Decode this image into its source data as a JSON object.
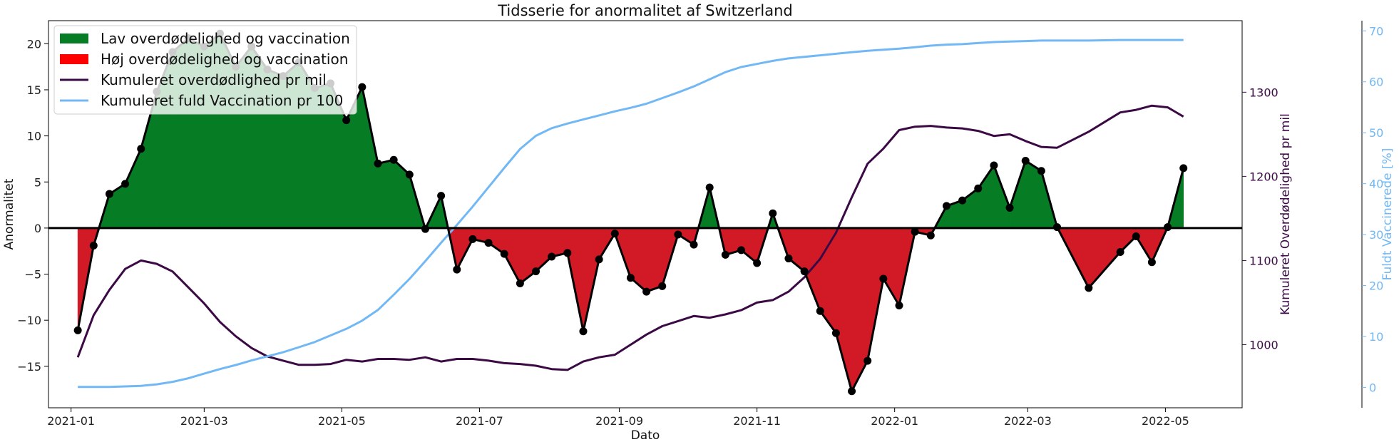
{
  "chart_data": {
    "type": "area",
    "title": "Tidsserie for anormalitet af Switzerland",
    "xlabel": "Dato",
    "ylabel": "Anormalitet",
    "ylabel_right": "Kumuleret Overdødelighed pr mil",
    "ylabel_right2": "Fuldt Vaccinerede [%]",
    "ylim": [
      -19.5,
      22.5
    ],
    "ylim_right": [
      925,
      1385
    ],
    "ylim_right2": [
      -4,
      72
    ],
    "xlim": [
      "2020-12-22",
      "2022-06-04"
    ],
    "x_ticks": [
      "2021-01",
      "2021-03",
      "2021-05",
      "2021-07",
      "2021-09",
      "2021-11",
      "2022-01",
      "2022-03",
      "2022-05"
    ],
    "y_ticks": [
      -15,
      -10,
      -5,
      0,
      5,
      10,
      15,
      20
    ],
    "y_ticks_right": [
      1000,
      1100,
      1200,
      1300
    ],
    "y_ticks_right2": [
      0,
      10,
      20,
      30,
      40,
      50,
      60,
      70
    ],
    "legend_position": "top-left",
    "colors": {
      "positive_fill": "#067d24",
      "negative_fill": "#d21a27",
      "anomaly_line": "#000000",
      "excess_line": "#3b0a45",
      "vacc_line": "#72b8f5",
      "right_axis": "#3b0a45",
      "right2_axis": "#72b8f5"
    },
    "legend": [
      {
        "label": "Lav overdødelighed og vaccination",
        "kind": "patch",
        "color": "#067d24"
      },
      {
        "label": "Høj overdødelighed og vaccination",
        "kind": "patch",
        "color": "#ff0000"
      },
      {
        "label": "Kumuleret overdødlighed pr mil",
        "kind": "line",
        "color": "#3b0a45"
      },
      {
        "label": "Kumuleret fuld Vaccination pr 100",
        "kind": "line",
        "color": "#72b8f5"
      }
    ],
    "series": [
      {
        "axis": "left",
        "x": [
          "2021-01-04",
          "2021-01-11",
          "2021-01-18",
          "2021-01-25",
          "2021-02-01",
          "2021-02-08",
          "2021-02-15",
          "2021-02-22",
          "2021-03-01",
          "2021-03-08",
          "2021-03-15",
          "2021-03-22",
          "2021-03-29",
          "2021-04-05",
          "2021-04-12",
          "2021-04-19",
          "2021-04-26",
          "2021-05-03",
          "2021-05-10",
          "2021-05-17",
          "2021-05-24",
          "2021-05-31",
          "2021-06-07",
          "2021-06-14",
          "2021-06-21",
          "2021-06-28",
          "2021-07-05",
          "2021-07-12",
          "2021-07-19",
          "2021-07-26",
          "2021-08-02",
          "2021-08-09",
          "2021-08-16",
          "2021-08-23",
          "2021-08-30",
          "2021-09-06",
          "2021-09-13",
          "2021-09-20",
          "2021-09-27",
          "2021-10-04",
          "2021-10-11",
          "2021-10-18",
          "2021-10-25",
          "2021-11-01",
          "2021-11-08",
          "2021-11-15",
          "2021-11-22",
          "2021-11-29",
          "2021-12-06",
          "2021-12-13",
          "2021-12-20",
          "2021-12-27",
          "2022-01-03",
          "2022-01-10",
          "2022-01-17",
          "2022-01-24",
          "2022-01-31",
          "2022-02-07",
          "2022-02-14",
          "2022-02-21",
          "2022-02-28",
          "2022-03-07",
          "2022-03-14",
          "2022-03-28",
          "2022-04-11",
          "2022-04-18",
          "2022-04-25",
          "2022-05-02",
          "2022-05-09"
        ],
        "values": [
          -11.1,
          -1.9,
          3.7,
          4.8,
          8.6,
          14.8,
          19.1,
          20.6,
          19.7,
          21.1,
          17.5,
          19.7,
          17.2,
          16.5,
          18.0,
          15.2,
          15.7,
          11.7,
          15.3,
          7.0,
          7.4,
          5.8,
          -0.1,
          3.5,
          -4.5,
          -1.2,
          -1.6,
          -2.8,
          -6.0,
          -4.7,
          -3.1,
          -2.7,
          -11.2,
          -3.4,
          -0.6,
          -5.4,
          -6.9,
          -6.3,
          -0.7,
          -1.8,
          4.4,
          -2.9,
          -2.4,
          -3.8,
          1.6,
          -3.3,
          -4.7,
          -9.0,
          -11.4,
          -17.7,
          -14.4,
          -5.5,
          -8.4,
          -0.4,
          -0.8,
          2.4,
          3.0,
          4.3,
          6.8,
          2.2,
          7.3,
          6.2,
          0.1,
          -6.5,
          -2.6,
          -0.9,
          -3.7,
          0.1,
          6.5
        ]
      },
      {
        "name": "Kumuleret overdødlighed pr mil",
        "axis": "right",
        "x": [
          "2021-01-04",
          "2021-01-11",
          "2021-01-18",
          "2021-01-25",
          "2021-02-01",
          "2021-02-08",
          "2021-02-15",
          "2021-02-22",
          "2021-03-01",
          "2021-03-08",
          "2021-03-15",
          "2021-03-22",
          "2021-03-29",
          "2021-04-05",
          "2021-04-12",
          "2021-04-19",
          "2021-04-26",
          "2021-05-03",
          "2021-05-10",
          "2021-05-17",
          "2021-05-24",
          "2021-05-31",
          "2021-06-07",
          "2021-06-14",
          "2021-06-21",
          "2021-06-28",
          "2021-07-05",
          "2021-07-12",
          "2021-07-19",
          "2021-07-26",
          "2021-08-02",
          "2021-08-09",
          "2021-08-16",
          "2021-08-23",
          "2021-08-30",
          "2021-09-06",
          "2021-09-13",
          "2021-09-20",
          "2021-09-27",
          "2021-10-04",
          "2021-10-11",
          "2021-10-18",
          "2021-10-25",
          "2021-11-01",
          "2021-11-08",
          "2021-11-15",
          "2021-11-22",
          "2021-11-29",
          "2021-12-06",
          "2021-12-13",
          "2021-12-20",
          "2021-12-27",
          "2022-01-03",
          "2022-01-10",
          "2022-01-17",
          "2022-01-24",
          "2022-01-31",
          "2022-02-07",
          "2022-02-14",
          "2022-02-21",
          "2022-02-28",
          "2022-03-07",
          "2022-03-14",
          "2022-03-28",
          "2022-04-11",
          "2022-04-18",
          "2022-04-25",
          "2022-05-02",
          "2022-05-09"
        ],
        "values": [
          985,
          1035,
          1065,
          1090,
          1100,
          1096,
          1087,
          1068,
          1049,
          1027,
          1010,
          996,
          986,
          981,
          976,
          976,
          977,
          982,
          980,
          983,
          983,
          982,
          985,
          980,
          983,
          983,
          981,
          978,
          977,
          975,
          971,
          970,
          980,
          985,
          988,
          1000,
          1012,
          1022,
          1028,
          1034,
          1032,
          1036,
          1041,
          1050,
          1053,
          1063,
          1080,
          1102,
          1133,
          1175,
          1215,
          1233,
          1255,
          1259,
          1260,
          1258,
          1257,
          1254,
          1248,
          1250,
          1242,
          1235,
          1234,
          1253,
          1276,
          1279,
          1284,
          1282,
          1271
        ]
      },
      {
        "name": "Kumuleret fuld Vaccination pr 100",
        "axis": "right2",
        "x": [
          "2021-01-04",
          "2021-01-11",
          "2021-01-18",
          "2021-01-25",
          "2021-02-01",
          "2021-02-08",
          "2021-02-15",
          "2021-02-22",
          "2021-03-01",
          "2021-03-08",
          "2021-03-15",
          "2021-03-22",
          "2021-03-29",
          "2021-04-05",
          "2021-04-12",
          "2021-04-19",
          "2021-04-26",
          "2021-05-03",
          "2021-05-10",
          "2021-05-17",
          "2021-05-24",
          "2021-05-31",
          "2021-06-07",
          "2021-06-14",
          "2021-06-21",
          "2021-06-28",
          "2021-07-05",
          "2021-07-12",
          "2021-07-19",
          "2021-07-26",
          "2021-08-02",
          "2021-08-09",
          "2021-08-16",
          "2021-08-23",
          "2021-08-30",
          "2021-09-06",
          "2021-09-13",
          "2021-09-20",
          "2021-09-27",
          "2021-10-04",
          "2021-10-11",
          "2021-10-18",
          "2021-10-25",
          "2021-11-01",
          "2021-11-08",
          "2021-11-15",
          "2021-11-22",
          "2021-11-29",
          "2021-12-06",
          "2021-12-13",
          "2021-12-20",
          "2021-12-27",
          "2022-01-03",
          "2022-01-10",
          "2022-01-17",
          "2022-01-24",
          "2022-01-31",
          "2022-02-07",
          "2022-02-14",
          "2022-02-21",
          "2022-02-28",
          "2022-03-07",
          "2022-03-14",
          "2022-03-28",
          "2022-04-11",
          "2022-04-18",
          "2022-04-25",
          "2022-05-02",
          "2022-05-09"
        ],
        "values": [
          0.1,
          0.1,
          0.1,
          0.2,
          0.3,
          0.6,
          1.1,
          1.8,
          2.7,
          3.6,
          4.4,
          5.3,
          6.1,
          6.9,
          7.9,
          8.9,
          10.2,
          11.5,
          13.1,
          15.2,
          18.2,
          21.3,
          24.8,
          28.4,
          31.9,
          35.5,
          39.3,
          43.1,
          46.8,
          49.4,
          50.9,
          51.8,
          52.6,
          53.4,
          54.2,
          54.9,
          55.7,
          56.8,
          57.9,
          59.1,
          60.5,
          61.9,
          62.9,
          63.5,
          64.1,
          64.6,
          64.9,
          65.2,
          65.5,
          65.8,
          66.1,
          66.3,
          66.5,
          66.8,
          67.1,
          67.3,
          67.4,
          67.6,
          67.8,
          67.9,
          68.0,
          68.1,
          68.1,
          68.1,
          68.2,
          68.2,
          68.2,
          68.2,
          68.2
        ]
      }
    ]
  }
}
